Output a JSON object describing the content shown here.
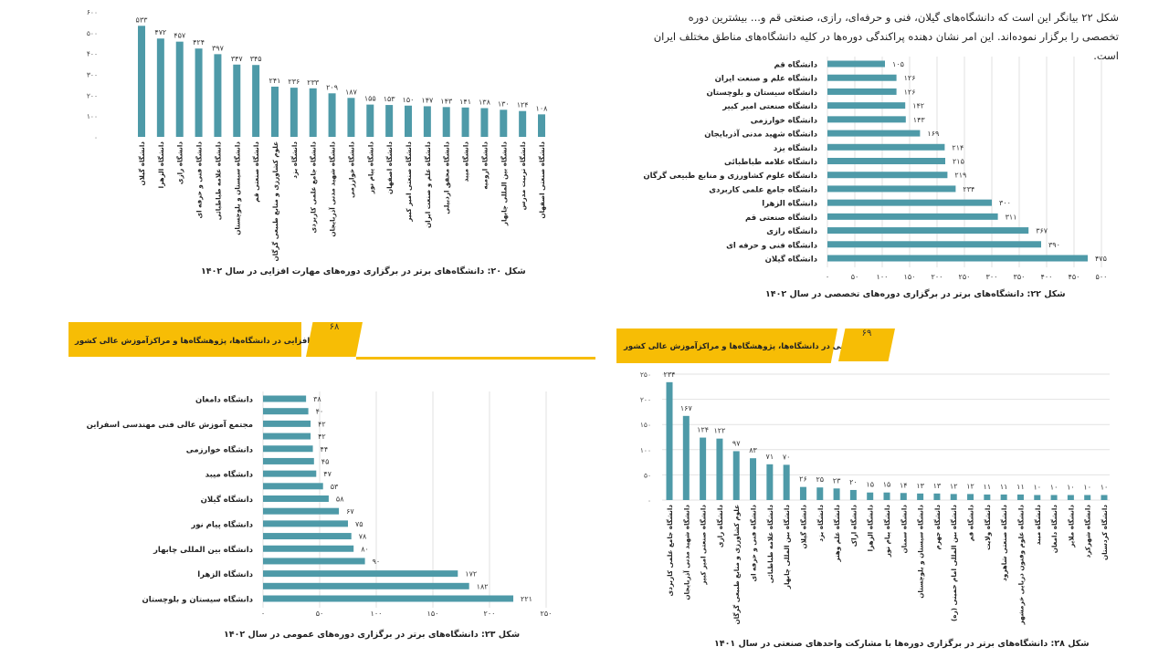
{
  "paragraph": "شکل ۲۲ بیانگر این است که دانشگاه‌های گیلان، فنی و حرفه‌ای، رازی، صنعتی قم و... بیشترین دوره تخصصی را برگزار نموده‌اند. این امر نشان دهنده پراکندگی دوره‌ها در کلیه دانشگاه‌های مناطق مختلف ایران است.",
  "banners": [
    {
      "text": "مهارت‌افزایی در دانشگاه‌ها، پژوهشگاه‌ها و مراکزآموزش عالی کشور",
      "page": "۶۸"
    },
    {
      "text": "مهارت‌افزایی در دانشگاه‌ها، پژوهشگاه‌ها و مراکزآموزش عالی کشور",
      "page": "۶۹"
    }
  ],
  "colors": {
    "bar": "#4e9aa8",
    "banner": "#f7bd05",
    "grid": "#e2e2e2"
  },
  "chart_data": [
    {
      "type": "bar",
      "orientation": "vertical",
      "title": "شکل ۲۰: دانشگاه‌های برتر در برگزاری دوره‌های مهارت افزایی در سال ۱۴۰۲",
      "categories": [
        "دانشگاه گیلان",
        "دانشگاه الزهرا",
        "دانشگاه رازی",
        "دانشگاه فنی و حرفه ای",
        "دانشگاه علامه طباطبائی",
        "دانشگاه سیستان و بلوچستان",
        "دانشگاه صنعتی قم",
        "علوم کشاورزی و منابع طبیعی گرگان",
        "دانشگاه یزد",
        "دانشگاه جامع علمی کاربردی",
        "دانشگاه شهید مدنی آذربایجان",
        "دانشگاه خوارزمی",
        "دانشگاه پیام نور",
        "دانشگاه اصفهان",
        "دانشگاه صنعتی امیر کبیر",
        "دانشگاه علم و صنعت ایران",
        "دانشگاه محقق اردبیلی",
        "دانشگاه میبد",
        "دانشگاه ارومیه",
        "دانشگاه بین المللی چابهار",
        "دانشگاه تربیت مدرس",
        "دانشگاه صنعتی اصفهان"
      ],
      "values": [
        533,
        472,
        457,
        424,
        397,
        347,
        345,
        241,
        236,
        233,
        209,
        187,
        155,
        153,
        150,
        147,
        143,
        141,
        138,
        130,
        124,
        108
      ],
      "ylim": [
        0,
        600
      ],
      "yticks": [
        0,
        100,
        200,
        300,
        400,
        500,
        600
      ],
      "grid": false
    },
    {
      "type": "bar",
      "orientation": "horizontal",
      "title": "شکل ۲۲: دانشگاه‌های برتر در برگزاری دوره‌های  تخصصی در سال ۱۴۰۲",
      "categories": [
        "دانشگاه قم",
        "دانشگاه علم و صنعت ایران",
        "دانشگاه سیستان و بلوچستان",
        "دانشگاه صنعتی امیر کبیر",
        "دانشگاه خوارزمی",
        "دانشگاه شهید مدنی آذربایجان",
        "دانشگاه یزد",
        "دانشگاه علامه طباطبائی",
        "دانشگاه علوم کشاورزی و منابع طبیعی گرگان",
        "دانشگاه جامع علمی کاربردی",
        "دانشگاه الزهرا",
        "دانشگاه صنعتی قم",
        "دانشگاه رازی",
        "دانشگاه فنی و حرفه ای",
        "دانشگاه گیلان"
      ],
      "values": [
        105,
        126,
        126,
        142,
        143,
        169,
        214,
        215,
        219,
        234,
        300,
        311,
        367,
        390,
        475
      ],
      "xlim": [
        0,
        500
      ],
      "xticks": [
        0,
        50,
        100,
        150,
        200,
        250,
        300,
        350,
        400,
        450,
        500
      ],
      "grid": true
    },
    {
      "type": "bar",
      "orientation": "horizontal",
      "title": "شکل ۲۳: دانشگاه‌های برتر در برگزاری دوره‌های عمومی در سال ۱۴۰۲",
      "categories": [
        "دانشگاه دامغان",
        "",
        "مجتمع آموزش عالی فنی مهندسی اسفراین",
        "",
        "دانشگاه خوارزمی",
        "",
        "دانشگاه میبد",
        "",
        "دانشگاه گیلان",
        "",
        "دانشگاه پیام نور",
        "",
        "دانشگاه بین المللی چابهار",
        "",
        "دانشگاه الزهرا",
        "",
        "دانشگاه سیستان و بلوچستان"
      ],
      "values": [
        38,
        40,
        42,
        42,
        44,
        45,
        47,
        53,
        58,
        67,
        75,
        78,
        80,
        90,
        172,
        182,
        221
      ],
      "xlim": [
        0,
        250
      ],
      "xticks": [
        0,
        50,
        100,
        150,
        200,
        250
      ],
      "grid": true
    },
    {
      "type": "bar",
      "orientation": "vertical",
      "title": "شکل ۲۸: دانشگاه‌های برتر در برگزاری دوره‌ها با مشارکت واحدهای صنعتی در سال ۱۴۰۱",
      "categories": [
        "دانشگاه جامع علمی کاربردی",
        "دانشگاه شهید مدنی آذربایجان",
        "دانشگاه صنعتی امیر کبیر",
        "دانشگاه رازی",
        "علوم کشاورزی و منابع طبیعی گرگان",
        "دانشگاه فنی و حرفه ای",
        "دانشگاه علامه طباطبائی",
        "دانشگاه بین المللی چابهار",
        "دانشگاه گیلان",
        "دانشگاه یزد",
        "دانشگاه علم وهنر",
        "دانشگاه اراک",
        "دانشگاه الزهرا",
        "دانشگاه پیام نور",
        "دانشگاه سمنان",
        "دانشگاه سیستان و بلوچستان",
        "دانشگاه جهرم",
        "دانشگاه بین المللی امام خمینی (ره)",
        "دانشگاه قم",
        "دانشگاه ولایت",
        "دانشگاه صنعتی شاهرود",
        "دانشگاه علوم وفنون دریایی خرمشهر",
        "دانشگاه میبد",
        "دانشگاه دامغان",
        "دانشگاه ملایر",
        "دانشگاه شهرکرد",
        "دانشگاه کردستان"
      ],
      "values": [
        234,
        167,
        124,
        122,
        97,
        83,
        71,
        70,
        26,
        25,
        23,
        20,
        15,
        15,
        14,
        13,
        13,
        12,
        12,
        11,
        11,
        11,
        10,
        10,
        10,
        10,
        10
      ],
      "ylim": [
        0,
        250
      ],
      "yticks": [
        0,
        50,
        100,
        150,
        200,
        250
      ],
      "grid": true
    }
  ]
}
